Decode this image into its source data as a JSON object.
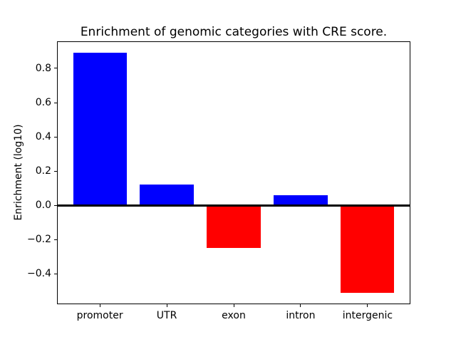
{
  "figure": {
    "background": "#ffffff",
    "text_color": "#000000",
    "axis_color": "#000000"
  },
  "chart_data": {
    "type": "bar",
    "title": "Enrichment of genomic categories with CRE score.",
    "xlabel": "",
    "ylabel": "Enrichment (log10)",
    "categories": [
      "promoter",
      "UTR",
      "exon",
      "intron",
      "intergenic"
    ],
    "values": [
      0.89,
      0.12,
      -0.25,
      0.06,
      -0.51
    ],
    "bar_colors": [
      "#0000ff",
      "#0000ff",
      "#ff0000",
      "#0000ff",
      "#ff0000"
    ],
    "positive_color": "#0000ff",
    "negative_color": "#ff0000",
    "bar_width": 0.8,
    "xlim": [
      -0.64,
      4.64
    ],
    "ylim": [
      -0.577,
      0.958
    ],
    "yticks": [
      -0.4,
      -0.2,
      0.0,
      0.2,
      0.4,
      0.6,
      0.8
    ],
    "ytick_labels": [
      "−0.4",
      "−0.2",
      "0.0",
      "0.2",
      "0.4",
      "0.6",
      "0.8"
    ],
    "zero_line": true,
    "grid": false,
    "legend": "none"
  }
}
